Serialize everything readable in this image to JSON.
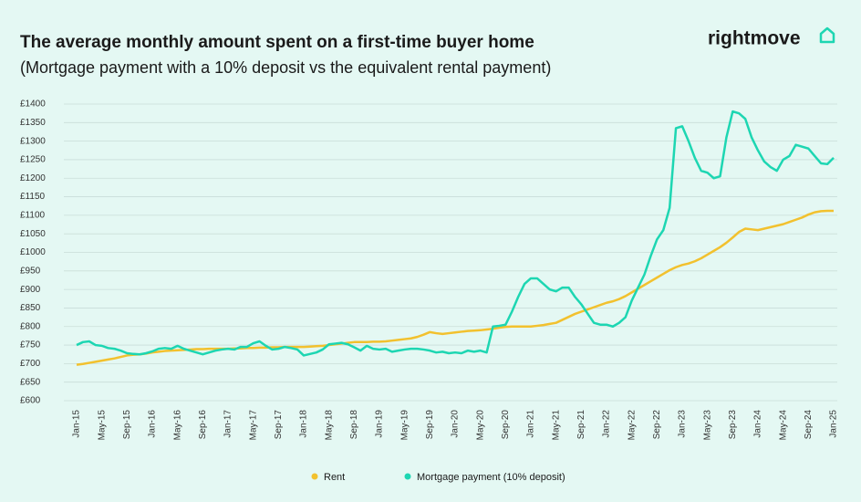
{
  "logo": "rightmove",
  "chart_data": {
    "type": "line",
    "title": "The average monthly amount spent on a first-time buyer home",
    "subtitle": "(Mortgage payment with a 10% deposit vs the equivalent rental payment)",
    "categories": [
      "Jan-15",
      null,
      null,
      null,
      "May-15",
      null,
      null,
      null,
      "Sep-15",
      null,
      null,
      null,
      "Jan-16",
      null,
      null,
      null,
      "May-16",
      null,
      null,
      null,
      "Sep-16",
      null,
      null,
      null,
      "Jan-17",
      null,
      null,
      null,
      "May-17",
      null,
      null,
      null,
      "Sep-17",
      null,
      null,
      null,
      "Jan-18",
      null,
      null,
      null,
      "May-18",
      null,
      null,
      null,
      "Sep-18",
      null,
      null,
      null,
      "Jan-19",
      null,
      null,
      null,
      "May-19",
      null,
      null,
      null,
      "Sep-19",
      null,
      null,
      null,
      "Jan-20",
      null,
      null,
      null,
      "May-20",
      null,
      null,
      null,
      "Sep-20",
      null,
      null,
      null,
      "Jan-21",
      null,
      null,
      null,
      "May-21",
      null,
      null,
      null,
      "Sep-21",
      null,
      null,
      null,
      "Jan-22",
      null,
      null,
      null,
      "May-22",
      null,
      null,
      null,
      "Sep-22",
      null,
      null,
      null,
      "Jan-23",
      null,
      null,
      null,
      "May-23",
      null,
      null,
      null,
      "Sep-23",
      null,
      null,
      null,
      "Jan-24",
      null,
      null,
      null,
      "May-24",
      null,
      null,
      null,
      "Sep-24",
      null,
      null,
      null,
      "Jan-25"
    ],
    "series": [
      {
        "name": "Rent",
        "color": "#f2c12e",
        "values": [
          697,
          699,
          702,
          705,
          708,
          711,
          714,
          718,
          722,
          724,
          725,
          727,
          730,
          732,
          734,
          735,
          736,
          737,
          738,
          739,
          739,
          740,
          740,
          740,
          740,
          741,
          741,
          742,
          742,
          743,
          743,
          744,
          744,
          745,
          745,
          745,
          745,
          746,
          747,
          748,
          750,
          752,
          754,
          756,
          758,
          758,
          758,
          759,
          759,
          760,
          762,
          764,
          766,
          768,
          772,
          778,
          785,
          782,
          780,
          782,
          784,
          786,
          788,
          789,
          790,
          792,
          794,
          797,
          799,
          800,
          800,
          800,
          800,
          802,
          804,
          807,
          810,
          818,
          826,
          834,
          840,
          846,
          852,
          858,
          864,
          868,
          874,
          882,
          892,
          902,
          912,
          922,
          932,
          942,
          952,
          960,
          966,
          970,
          976,
          984,
          994,
          1004,
          1014,
          1026,
          1040,
          1055,
          1064,
          1062,
          1060,
          1064,
          1068,
          1072,
          1076,
          1082,
          1088,
          1094,
          1102,
          1108,
          1111,
          1112,
          1112
        ]
      },
      {
        "name": "Mortgage payment (10% deposit)",
        "color": "#1dd6b2",
        "values": [
          750,
          758,
          760,
          750,
          748,
          742,
          740,
          735,
          728,
          726,
          725,
          728,
          733,
          740,
          742,
          740,
          748,
          740,
          735,
          730,
          725,
          730,
          735,
          738,
          740,
          738,
          745,
          745,
          755,
          760,
          748,
          738,
          740,
          745,
          742,
          738,
          722,
          726,
          730,
          738,
          752,
          754,
          756,
          752,
          744,
          735,
          748,
          740,
          738,
          740,
          732,
          735,
          738,
          740,
          740,
          738,
          735,
          730,
          732,
          728,
          730,
          728,
          735,
          732,
          735,
          730,
          800,
          802,
          805,
          840,
          880,
          915,
          930,
          930,
          915,
          900,
          895,
          905,
          905,
          880,
          860,
          835,
          810,
          805,
          805,
          800,
          810,
          825,
          870,
          905,
          940,
          990,
          1035,
          1060,
          1120,
          1335,
          1340,
          1300,
          1255,
          1220,
          1215,
          1200,
          1205,
          1310,
          1380,
          1375,
          1360,
          1310,
          1275,
          1245,
          1230,
          1220,
          1250,
          1260,
          1290,
          1285,
          1280,
          1260,
          1240,
          1238,
          1255
        ]
      }
    ],
    "ylim": [
      600,
      1400
    ],
    "yticks": [
      {
        "value": 600,
        "label": "£600"
      },
      {
        "value": 650,
        "label": "£650"
      },
      {
        "value": 700,
        "label": "£700"
      },
      {
        "value": 750,
        "label": "£750"
      },
      {
        "value": 800,
        "label": "£800"
      },
      {
        "value": 850,
        "label": "£850"
      },
      {
        "value": 900,
        "label": "£900"
      },
      {
        "value": 950,
        "label": "£950"
      },
      {
        "value": 1000,
        "label": "£1000"
      },
      {
        "value": 1050,
        "label": "£1050"
      },
      {
        "value": 1100,
        "label": "£1100"
      },
      {
        "value": 1150,
        "label": "£1150"
      },
      {
        "value": 1200,
        "label": "£1200"
      },
      {
        "value": 1250,
        "label": "£1250"
      },
      {
        "value": 1300,
        "label": "£1300"
      },
      {
        "value": 1350,
        "label": "£1350"
      },
      {
        "value": 1400,
        "label": "£1400"
      }
    ],
    "grid": true,
    "legend": "bottom"
  }
}
